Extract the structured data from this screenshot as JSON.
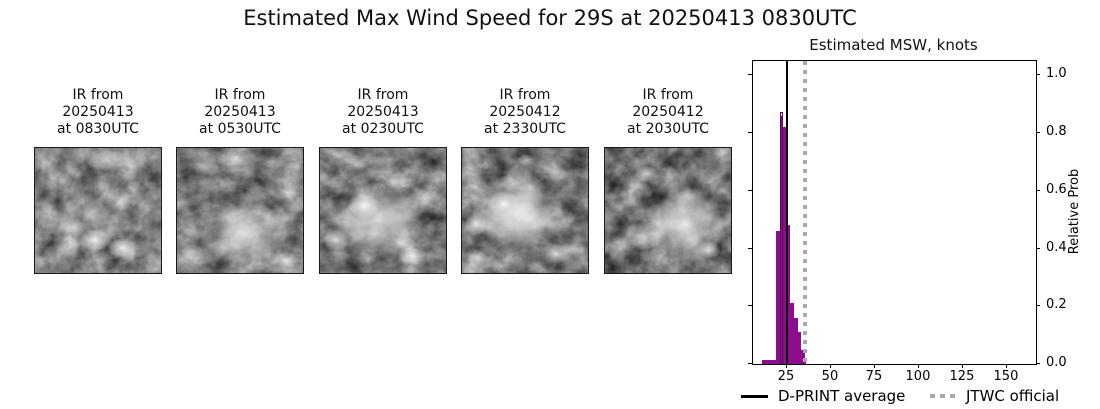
{
  "title": "Estimated Max Wind Speed for 29S at 20250413 0830UTC",
  "ir_panels": [
    {
      "label_lines": [
        "IR from",
        "20250413",
        "at 0830UTC"
      ]
    },
    {
      "label_lines": [
        "IR from",
        "20250413",
        "at 0530UTC"
      ]
    },
    {
      "label_lines": [
        "IR from",
        "20250413",
        "at 0230UTC"
      ]
    },
    {
      "label_lines": [
        "IR from",
        "20250412",
        "at 2330UTC"
      ]
    },
    {
      "label_lines": [
        "IR from",
        "20250412",
        "at 2030UTC"
      ]
    }
  ],
  "chart_data": {
    "type": "bar",
    "title": "Estimated MSW, knots",
    "ylabel": "Relative Prob",
    "xlabel": "",
    "xlim": [
      5.7,
      166.5
    ],
    "ylim": [
      0,
      1.05
    ],
    "x_ticks": [
      25,
      50,
      75,
      100,
      125,
      150
    ],
    "y_ticks": [
      0.0,
      0.2,
      0.4,
      0.6,
      0.8,
      1.0
    ],
    "grid": false,
    "bars": [
      {
        "x0": 11,
        "x1": 19,
        "h": 0.015
      },
      {
        "x0": 19,
        "x1": 21,
        "h": 0.46
      },
      {
        "x0": 21,
        "x1": 23,
        "h": 0.86
      },
      {
        "x0": 23,
        "x1": 25,
        "h": 0.82
      },
      {
        "x0": 25,
        "x1": 27,
        "h": 0.48
      },
      {
        "x0": 27,
        "x1": 29,
        "h": 0.21
      },
      {
        "x0": 29,
        "x1": 31,
        "h": 0.16
      },
      {
        "x0": 31,
        "x1": 33,
        "h": 0.11
      },
      {
        "x0": 33,
        "x1": 35,
        "h": 0.05
      },
      {
        "x0": 35,
        "x1": 36,
        "h": 0.01
      }
    ],
    "outline_bar": {
      "x0": 21,
      "x1": 23,
      "h": 0.875
    },
    "dprint_average_knots": 25,
    "jtwc_official_knots": 35,
    "legend": {
      "dprint_label": "D-PRINT average",
      "jtwc_label": "JTWC official"
    },
    "colors": {
      "bar": "#8e0d8e",
      "bar_outline": "#5a045a",
      "dprint_line": "#000000",
      "jtwc_line": "#a9a9a9"
    }
  }
}
